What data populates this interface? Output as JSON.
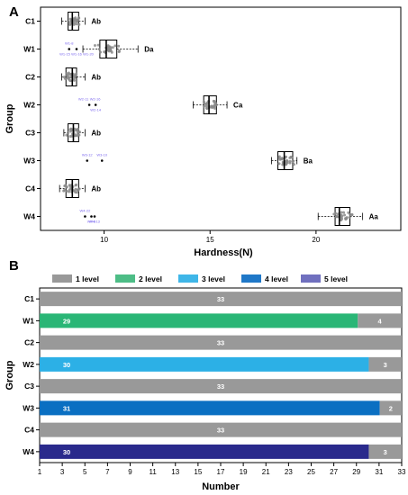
{
  "chart_data": [
    {
      "panel": "A",
      "type": "box",
      "xlabel": "Hardness(N)",
      "ylabel": "Group",
      "xlim": [
        7,
        24
      ],
      "xticks": [
        "10",
        "15",
        "20"
      ],
      "categories": [
        "C1",
        "W1",
        "C2",
        "W2",
        "C3",
        "W3",
        "C4",
        "W4"
      ],
      "boxes": [
        {
          "group": "C1",
          "whisker_low": 8.0,
          "q1": 8.3,
          "median": 8.5,
          "q3": 8.8,
          "whisker_high": 9.1,
          "letter": "Ab"
        },
        {
          "group": "W1",
          "whisker_low": 9.0,
          "q1": 9.8,
          "median": 10.1,
          "q3": 10.6,
          "whisker_high": 11.6,
          "letter": "Da"
        },
        {
          "group": "C2",
          "whisker_low": 8.0,
          "q1": 8.2,
          "median": 8.5,
          "q3": 8.7,
          "whisker_high": 9.1,
          "letter": "Ab"
        },
        {
          "group": "W2",
          "whisker_low": 14.2,
          "q1": 14.7,
          "median": 14.95,
          "q3": 15.3,
          "whisker_high": 15.8,
          "letter": "Ca"
        },
        {
          "group": "C3",
          "whisker_low": 8.1,
          "q1": 8.3,
          "median": 8.55,
          "q3": 8.8,
          "whisker_high": 9.1,
          "letter": "Ab"
        },
        {
          "group": "W3",
          "whisker_low": 17.9,
          "q1": 18.2,
          "median": 18.5,
          "q3": 18.9,
          "whisker_high": 19.1,
          "letter": "Ba"
        },
        {
          "group": "C4",
          "whisker_low": 7.9,
          "q1": 8.2,
          "median": 8.5,
          "q3": 8.8,
          "whisker_high": 9.1,
          "letter": "Ab"
        },
        {
          "group": "W4",
          "whisker_low": 20.1,
          "q1": 20.9,
          "median": 21.1,
          "q3": 21.6,
          "whisker_high": 22.2,
          "letter": "Aa"
        }
      ],
      "outliers": [
        {
          "group": "W1",
          "value": 8.35,
          "labels": [
            "W1-8"
          ],
          "label_side": "above"
        },
        {
          "group": "W1",
          "value": 8.7,
          "labels": [
            "W1-15",
            "W1-16",
            "W1-20"
          ],
          "label_side": "below"
        },
        {
          "group": "W2",
          "value": 9.3,
          "labels": [
            "W2-11",
            "W2-16"
          ],
          "label_side": "above"
        },
        {
          "group": "W2",
          "value": 9.6,
          "labels": [
            "W2-14"
          ],
          "label_side": "below"
        },
        {
          "group": "W3",
          "value": 9.2,
          "labels": [
            "W3-12"
          ],
          "label_side": "above"
        },
        {
          "group": "W3",
          "value": 9.9,
          "labels": [
            "W3-10"
          ],
          "label_side": "above"
        },
        {
          "group": "W4",
          "value": 9.1,
          "labels": [
            "W4-22"
          ],
          "label_side": "above"
        },
        {
          "group": "W4",
          "value": 9.4,
          "labels": [
            "W4-6"
          ],
          "label_side": "below"
        },
        {
          "group": "W4",
          "value": 9.55,
          "labels": [
            "W4-13"
          ],
          "label_side": "below"
        }
      ]
    },
    {
      "panel": "B",
      "type": "bar",
      "orientation": "horizontal",
      "stacked": true,
      "xlabel": "Number",
      "ylabel": "Group",
      "xlim": [
        1,
        33
      ],
      "xticks": [
        "1",
        "3",
        "5",
        "7",
        "9",
        "11",
        "13",
        "15",
        "17",
        "19",
        "21",
        "23",
        "25",
        "27",
        "29",
        "31",
        "33"
      ],
      "categories": [
        "C1",
        "W1",
        "C2",
        "W2",
        "C3",
        "W3",
        "C4",
        "W4"
      ],
      "legend": [
        {
          "name": "1 level",
          "color": "#999999"
        },
        {
          "name": "2 level",
          "color": "#4dbd86"
        },
        {
          "name": "3 level",
          "color": "#3fb6e8"
        },
        {
          "name": "4 level",
          "color": "#1f78c8"
        },
        {
          "name": "5 level",
          "color": "#7070bf"
        }
      ],
      "bars": [
        {
          "group": "C1",
          "segments": [
            {
              "level": "1 level",
              "value": 33,
              "label": "33",
              "color": "#999999"
            }
          ]
        },
        {
          "group": "W1",
          "segments": [
            {
              "level": "2 level",
              "value": 29,
              "label": "29",
              "color": "#2ab676"
            },
            {
              "level": "1 level",
              "value": 4,
              "label": "4",
              "color": "#999999"
            }
          ]
        },
        {
          "group": "C2",
          "segments": [
            {
              "level": "1 level",
              "value": 33,
              "label": "33",
              "color": "#999999"
            }
          ]
        },
        {
          "group": "W2",
          "segments": [
            {
              "level": "3 level",
              "value": 30,
              "label": "30",
              "color": "#2cb0e6"
            },
            {
              "level": "1 level",
              "value": 3,
              "label": "3",
              "color": "#999999"
            }
          ]
        },
        {
          "group": "C3",
          "segments": [
            {
              "level": "1 level",
              "value": 33,
              "label": "33",
              "color": "#999999"
            }
          ]
        },
        {
          "group": "W3",
          "segments": [
            {
              "level": "4 level",
              "value": 31,
              "label": "31",
              "color": "#0a6fc2"
            },
            {
              "level": "1 level",
              "value": 2,
              "label": "2",
              "color": "#999999"
            }
          ]
        },
        {
          "group": "C4",
          "segments": [
            {
              "level": "1 level",
              "value": 33,
              "label": "33",
              "color": "#999999"
            }
          ]
        },
        {
          "group": "W4",
          "segments": [
            {
              "level": "5 level",
              "value": 30,
              "label": "30",
              "color": "#2a2a8c"
            },
            {
              "level": "1 level",
              "value": 3,
              "label": "3",
              "color": "#999999"
            }
          ]
        }
      ]
    }
  ]
}
